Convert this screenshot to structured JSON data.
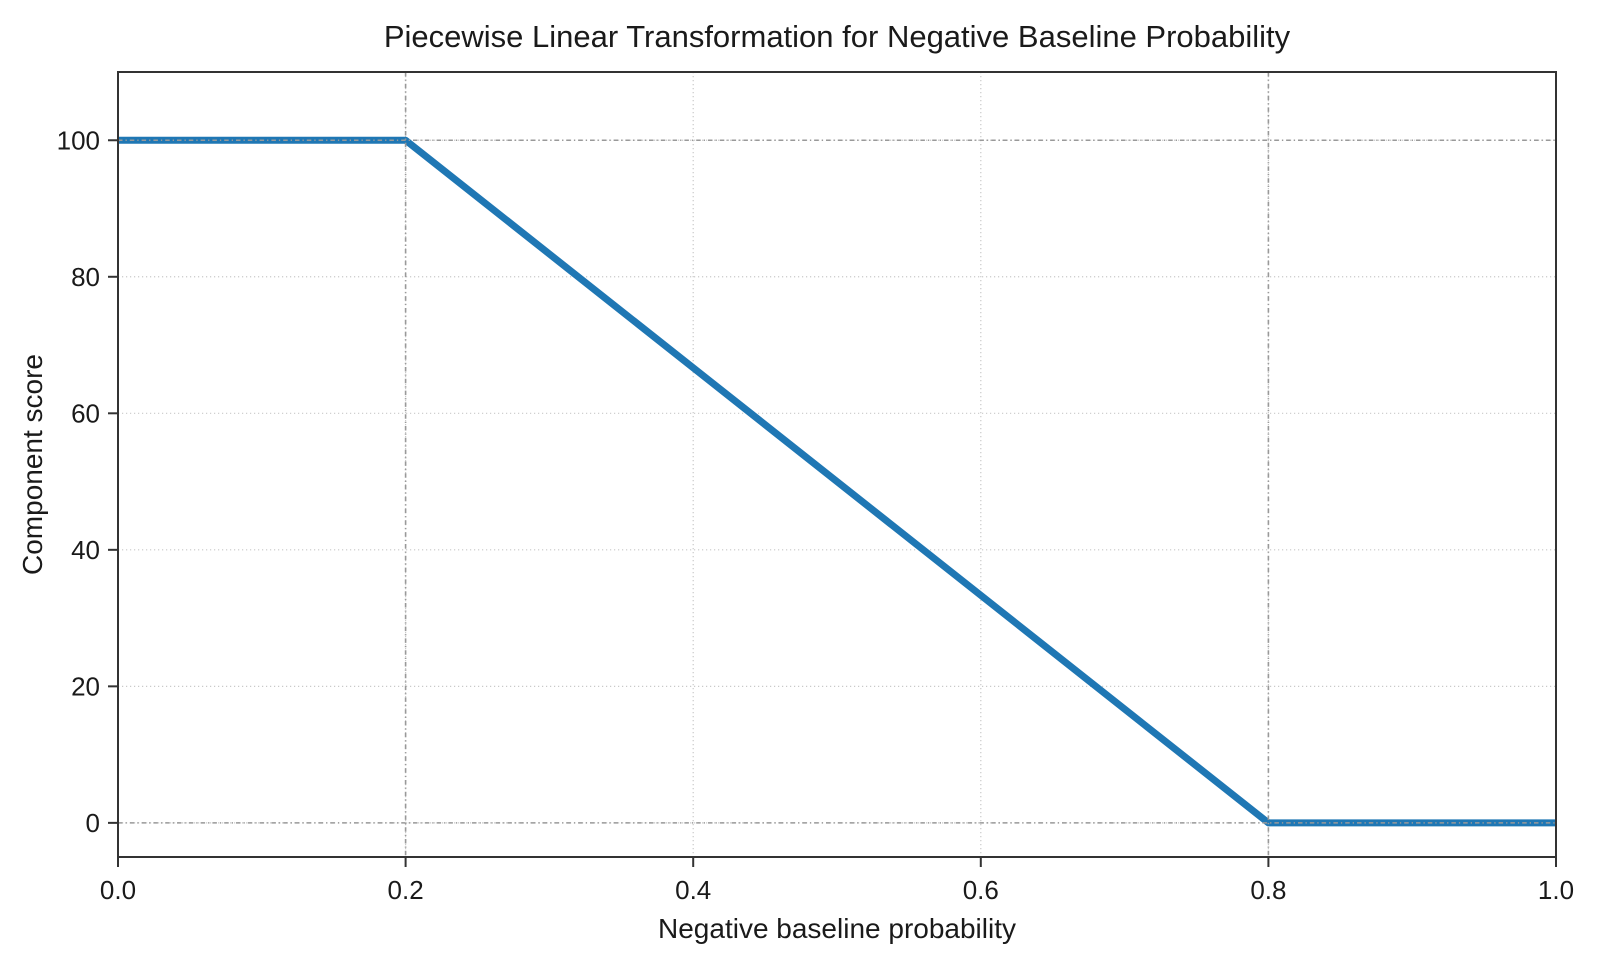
{
  "chart_data": {
    "type": "line",
    "title": "Piecewise Linear Transformation for Negative Baseline Probability",
    "xlabel": "Negative baseline probability",
    "ylabel": "Component score",
    "xlim": [
      0,
      1
    ],
    "ylim": [
      -5,
      110
    ],
    "x_ticks": [
      0.0,
      0.2,
      0.4,
      0.6,
      0.8,
      1.0
    ],
    "x_tick_labels": [
      "0.0",
      "0.2",
      "0.4",
      "0.6",
      "0.8",
      "1.0"
    ],
    "y_ticks": [
      0,
      20,
      40,
      60,
      80,
      100
    ],
    "y_tick_labels": [
      "0",
      "20",
      "40",
      "60",
      "80",
      "100"
    ],
    "grid": {
      "on": true,
      "style": "dotted",
      "color": "#c9c9c9"
    },
    "reference_lines": {
      "vertical_x": [
        0.2,
        0.8
      ],
      "horizontal_y": [
        0,
        100
      ],
      "style": "dash-dot",
      "color": "#999999"
    },
    "series": [
      {
        "name": "Component score transform",
        "color": "#1f77b4",
        "linewidth": 7,
        "points": [
          [
            0.0,
            100
          ],
          [
            0.2,
            100
          ],
          [
            0.8,
            0
          ],
          [
            1.0,
            0
          ]
        ]
      }
    ],
    "legend": "none",
    "colors": {
      "text": "#1a1a1a",
      "spine": "#333333",
      "background": "#ffffff"
    }
  }
}
